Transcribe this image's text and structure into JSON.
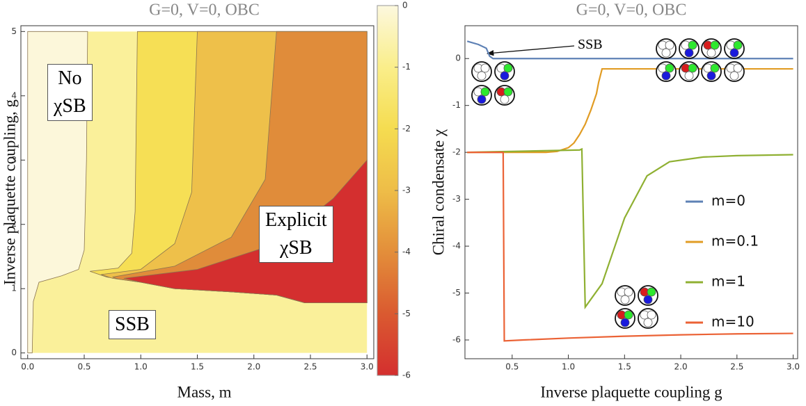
{
  "chart_data": [
    {
      "type": "contour",
      "title": "G=0, V=0, OBC",
      "x_label": "Mass, m",
      "y_label": "Inverse plaquette coupling, g",
      "xlim": [
        -0.06,
        3.06
      ],
      "ylim": [
        -0.09,
        5.09
      ],
      "xticks": [
        {
          "value": 0,
          "label": "0.0"
        },
        0.5,
        {
          "value": 1,
          "label": "1.0"
        },
        1.5,
        {
          "value": 2,
          "label": "2.0"
        },
        2.5,
        {
          "value": 3,
          "label": "3.0"
        }
      ],
      "yticks": [
        0,
        1,
        2,
        3,
        4,
        5
      ],
      "regions": [
        {
          "color": "#faf09a",
          "x": [
            0,
            3,
            3,
            0
          ],
          "y": [
            0,
            0,
            5,
            5
          ]
        },
        {
          "color": "#fcf7da",
          "x": [
            0,
            0.04,
            0.05,
            0.1,
            0.3,
            0.45,
            0.5,
            0.52,
            0.53,
            0
          ],
          "y": [
            0,
            0,
            0.8,
            1.1,
            1.2,
            1.3,
            1.6,
            3,
            5,
            5
          ]
        },
        {
          "color": "#f6df55",
          "x": [
            0.55,
            0.8,
            0.92,
            0.95,
            0.97,
            3,
            3,
            2.45,
            2.2,
            1.8,
            1.3,
            1.0,
            0.7
          ],
          "y": [
            1.27,
            1.32,
            1.55,
            2.2,
            5,
            5,
            0.78,
            0.78,
            0.9,
            0.95,
            1.0,
            1.1,
            1.18
          ]
        },
        {
          "color": "#eec04a",
          "x": [
            0.65,
            1.0,
            1.3,
            1.45,
            1.5,
            3,
            3,
            2.45,
            2.2,
            1.8,
            1.3,
            1.0,
            0.75
          ],
          "y": [
            1.22,
            1.3,
            1.7,
            2.5,
            5,
            5,
            0.78,
            0.78,
            0.9,
            0.95,
            1.0,
            1.1,
            1.16
          ]
        },
        {
          "color": "#e08c3a",
          "x": [
            0.75,
            1.3,
            1.8,
            2.1,
            2.2,
            3,
            3,
            2.45,
            2.2,
            1.8,
            1.3,
            1.0,
            0.8
          ],
          "y": [
            1.18,
            1.35,
            1.8,
            2.7,
            5,
            5,
            0.78,
            0.78,
            0.9,
            0.95,
            1.0,
            1.1,
            1.15
          ]
        },
        {
          "color": "#d42f2f",
          "x": [
            0.85,
            1.5,
            2.2,
            2.7,
            3,
            3,
            2.45,
            2.2,
            1.8,
            1.3,
            1.0
          ],
          "y": [
            1.16,
            1.3,
            1.7,
            2.4,
            3,
            0.78,
            0.78,
            0.9,
            0.95,
            1.0,
            1.1
          ]
        }
      ],
      "colorbar": {
        "colors": [
          "#fcf8de",
          "#faee8a",
          "#f5dc50",
          "#eebd48",
          "#e38e3a",
          "#da5a30",
          "#d42f2f"
        ],
        "lim": [
          -6,
          0
        ],
        "ticks": [
          0,
          -1,
          -2,
          -3,
          -4,
          -5,
          -6
        ]
      },
      "annotations": [
        [
          "No",
          "χSB"
        ],
        [
          "Explicit",
          "χSB"
        ],
        [
          "SSB"
        ]
      ]
    },
    {
      "type": "line",
      "title": "G=0, V=0, OBC",
      "x_label": "Inverse plaquette coupling g",
      "y_label": "Chiral condensate χ",
      "xlim": [
        0.08,
        3.04
      ],
      "ylim": [
        -6.4,
        0.7
      ],
      "xticks": [
        0.5,
        {
          "value": 1,
          "label": "1.0"
        },
        1.5,
        {
          "value": 2,
          "label": "2.0"
        },
        2.5,
        {
          "value": 3,
          "label": "3.0"
        }
      ],
      "yticks": [
        0,
        -1,
        -2,
        -3,
        -4,
        -5,
        -6
      ],
      "series": [
        {
          "name": "m=0",
          "color": "#5e81b5",
          "x": [
            0.1,
            0.2,
            0.27,
            0.3,
            0.33,
            3.0
          ],
          "values": [
            0.37,
            0.3,
            0.22,
            0.05,
            0,
            0
          ]
        },
        {
          "name": "m=0.1",
          "color": "#e19c24",
          "x": [
            0.1,
            0.8,
            0.9,
            1.0,
            1.05,
            1.1,
            1.15,
            1.2,
            1.25,
            1.27,
            1.3,
            3.0
          ],
          "values": [
            -2,
            -2,
            -1.98,
            -1.9,
            -1.8,
            -1.62,
            -1.4,
            -1.1,
            -0.75,
            -0.5,
            -0.22,
            -0.22
          ]
        },
        {
          "name": "m=1",
          "color": "#8fb032",
          "x": [
            0.1,
            1.1,
            1.12,
            1.15,
            1.3,
            1.5,
            1.7,
            1.9,
            2.2,
            2.5,
            3.0
          ],
          "values": [
            -2,
            -1.95,
            -1.93,
            -5.3,
            -4.8,
            -3.4,
            -2.5,
            -2.2,
            -2.1,
            -2.07,
            -2.05
          ]
        },
        {
          "name": "m=10",
          "color": "#eb6235",
          "x": [
            0.1,
            0.42,
            0.43,
            0.6,
            1.0,
            1.5,
            2.0,
            2.5,
            3.0
          ],
          "values": [
            -2,
            -2,
            -6.02,
            -6.0,
            -5.96,
            -5.92,
            -5.89,
            -5.87,
            -5.86
          ]
        }
      ],
      "annotations": [
        [
          "SSB"
        ]
      ]
    }
  ]
}
